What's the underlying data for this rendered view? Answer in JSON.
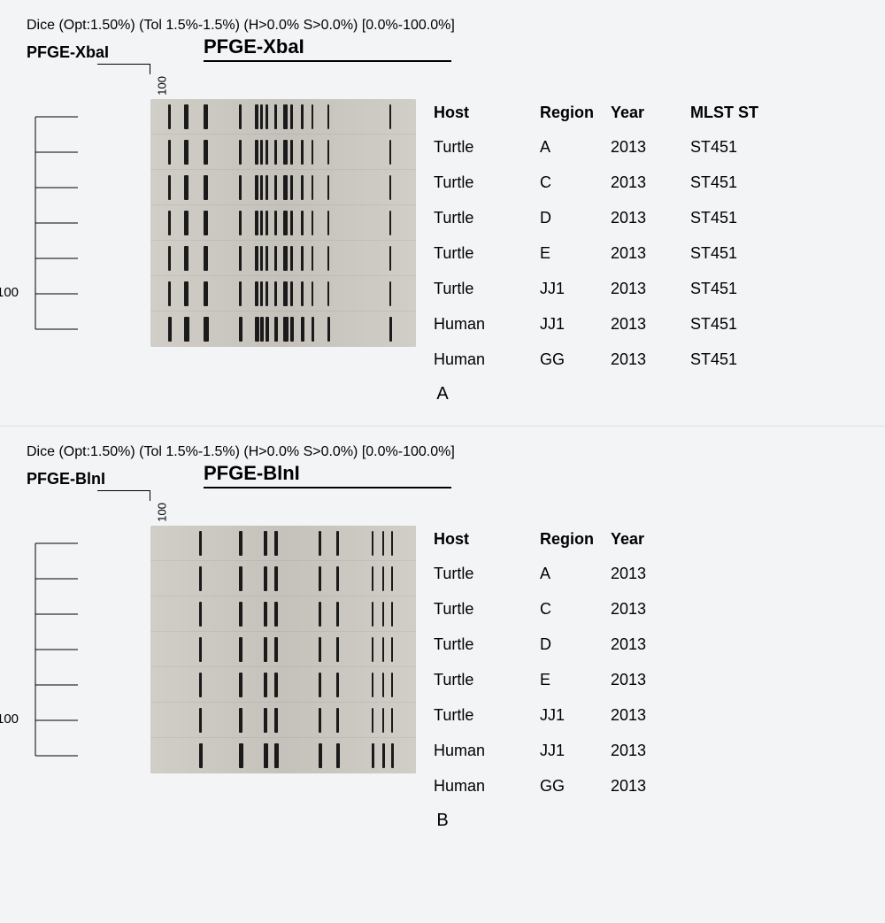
{
  "background_color": "#f2f4f6",
  "gel_background": "#c4c2ba",
  "band_color": "#1a1a1a",
  "panelA": {
    "dice_text": "Dice (Opt:1.50%) (Tol 1.5%-1.5%) (H>0.0% S>0.0%) [0.0%-100.0%]",
    "left_label": "PFGE-XbaI",
    "gel_title": "PFGE-XbaI",
    "scale_top_value": "100",
    "scale_left_value": "100",
    "panel_letter": "A",
    "columns": [
      "Host",
      "Region",
      "Year",
      "MLST ST"
    ],
    "rows": [
      {
        "host": "Turtle",
        "region": "A",
        "year": "2013",
        "mlst": "ST451"
      },
      {
        "host": "Turtle",
        "region": "C",
        "year": "2013",
        "mlst": "ST451"
      },
      {
        "host": "Turtle",
        "region": "D",
        "year": "2013",
        "mlst": "ST451"
      },
      {
        "host": "Turtle",
        "region": "E",
        "year": "2013",
        "mlst": "ST451"
      },
      {
        "host": "Turtle",
        "region": "JJ1",
        "year": "2013",
        "mlst": "ST451"
      },
      {
        "host": "Human",
        "region": "JJ1",
        "year": "2013",
        "mlst": "ST451"
      },
      {
        "host": "Human",
        "region": "GG",
        "year": "2013",
        "mlst": "ST451"
      }
    ],
    "bands": [
      [
        20,
        3,
        38,
        5,
        60,
        5,
        100,
        3,
        118,
        4,
        124,
        3,
        130,
        3,
        140,
        3,
        150,
        5,
        158,
        3,
        170,
        3,
        182,
        2,
        200,
        2,
        270,
        2
      ],
      [
        20,
        3,
        38,
        5,
        60,
        5,
        100,
        3,
        118,
        4,
        124,
        3,
        130,
        3,
        140,
        3,
        150,
        5,
        158,
        3,
        170,
        3,
        182,
        2,
        200,
        2,
        270,
        2
      ],
      [
        20,
        3,
        38,
        5,
        60,
        5,
        100,
        3,
        118,
        4,
        124,
        3,
        130,
        3,
        140,
        3,
        150,
        5,
        158,
        3,
        170,
        3,
        182,
        2,
        200,
        2,
        270,
        2
      ],
      [
        20,
        3,
        38,
        5,
        60,
        5,
        100,
        3,
        118,
        4,
        124,
        3,
        130,
        3,
        140,
        3,
        150,
        5,
        158,
        3,
        170,
        3,
        182,
        2,
        200,
        2,
        270,
        2
      ],
      [
        20,
        3,
        38,
        5,
        60,
        5,
        100,
        3,
        118,
        4,
        124,
        3,
        130,
        3,
        140,
        3,
        150,
        5,
        158,
        3,
        170,
        3,
        182,
        2,
        200,
        2,
        270,
        2
      ],
      [
        20,
        3,
        38,
        5,
        60,
        5,
        100,
        3,
        118,
        4,
        124,
        3,
        130,
        3,
        140,
        3,
        150,
        5,
        158,
        3,
        170,
        3,
        182,
        2,
        200,
        2,
        270,
        2
      ],
      [
        20,
        4,
        38,
        6,
        60,
        6,
        100,
        4,
        118,
        5,
        124,
        4,
        130,
        4,
        140,
        4,
        150,
        6,
        158,
        4,
        170,
        4,
        182,
        3,
        200,
        3,
        270,
        3
      ]
    ]
  },
  "panelB": {
    "dice_text": "Dice (Opt:1.50%) (Tol 1.5%-1.5%) (H>0.0% S>0.0%) [0.0%-100.0%]",
    "left_label": "PFGE-BlnI",
    "gel_title": "PFGE-BlnI",
    "scale_top_value": "100",
    "scale_left_value": "100",
    "panel_letter": "B",
    "columns": [
      "Host",
      "Region",
      "Year"
    ],
    "rows": [
      {
        "host": "Turtle",
        "region": "A",
        "year": "2013"
      },
      {
        "host": "Turtle",
        "region": "C",
        "year": "2013"
      },
      {
        "host": "Turtle",
        "region": "D",
        "year": "2013"
      },
      {
        "host": "Turtle",
        "region": "E",
        "year": "2013"
      },
      {
        "host": "Turtle",
        "region": "JJ1",
        "year": "2013"
      },
      {
        "host": "Human",
        "region": "JJ1",
        "year": "2013"
      },
      {
        "host": "Human",
        "region": "GG",
        "year": "2013"
      }
    ],
    "bands": [
      [
        55,
        3,
        100,
        4,
        128,
        4,
        140,
        4,
        190,
        3,
        210,
        3,
        250,
        2,
        262,
        2,
        272,
        2
      ],
      [
        55,
        3,
        100,
        4,
        128,
        4,
        140,
        4,
        190,
        3,
        210,
        3,
        250,
        2,
        262,
        2,
        272,
        2
      ],
      [
        55,
        3,
        100,
        4,
        128,
        4,
        140,
        4,
        190,
        3,
        210,
        3,
        250,
        2,
        262,
        2,
        272,
        2
      ],
      [
        55,
        3,
        100,
        4,
        128,
        4,
        140,
        4,
        190,
        3,
        210,
        3,
        250,
        2,
        262,
        2,
        272,
        2
      ],
      [
        55,
        3,
        100,
        4,
        128,
        4,
        140,
        4,
        190,
        3,
        210,
        3,
        250,
        2,
        262,
        2,
        272,
        2
      ],
      [
        55,
        3,
        100,
        4,
        128,
        4,
        140,
        4,
        190,
        3,
        210,
        3,
        250,
        2,
        262,
        2,
        272,
        2
      ],
      [
        55,
        4,
        100,
        5,
        128,
        5,
        140,
        5,
        190,
        4,
        210,
        4,
        250,
        3,
        262,
        3,
        272,
        3
      ]
    ]
  },
  "dendro": {
    "width": 60,
    "lane_height": 40,
    "n_lanes": 7,
    "stroke": "#000",
    "stroke_width": 1,
    "left_label_y_factor": 0.78
  }
}
